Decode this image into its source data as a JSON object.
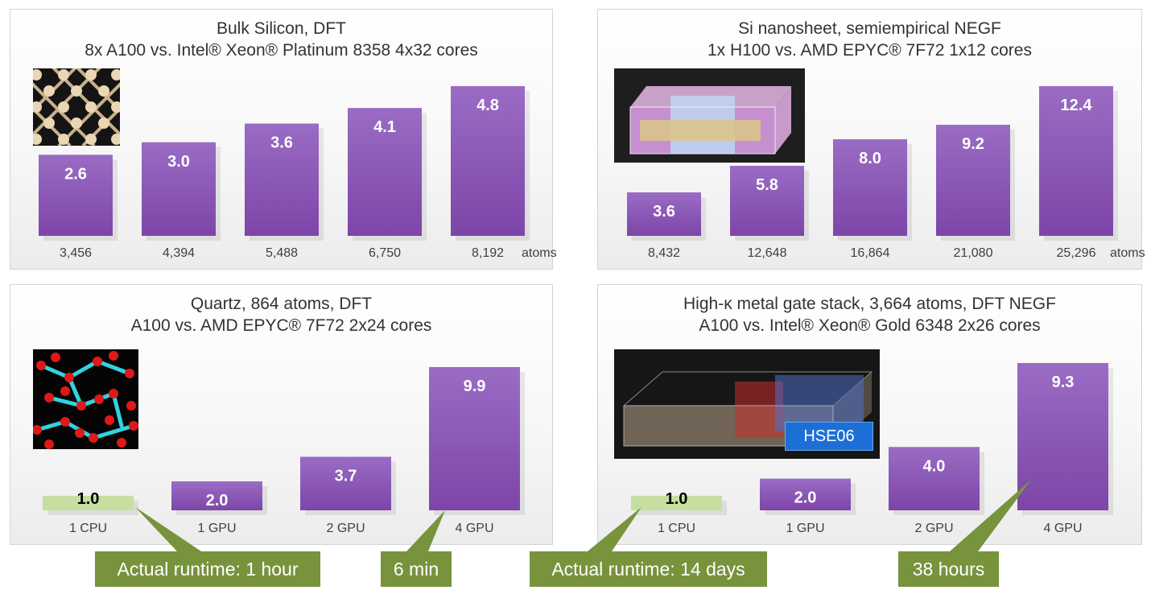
{
  "colors": {
    "bar": "#7d45a8",
    "bar_light": "#9a6cc4",
    "baseline": "#c5dfa1",
    "callout": "#77933c",
    "badge": "#1c6fd6"
  },
  "chart_data": [
    {
      "type": "bar",
      "title": [
        "Bulk Silicon, DFT",
        "8x A100 vs. Intel® Xeon® Platinum 8358 4x32 cores"
      ],
      "categories": [
        "3,456",
        "4,394",
        "5,488",
        "6,750",
        "8,192"
      ],
      "unit_label": "atoms",
      "values": [
        2.6,
        3.0,
        3.6,
        4.1,
        4.8
      ],
      "value_labels": [
        "2.6",
        "3.0",
        "3.6",
        "4.1",
        "4.8"
      ],
      "ylim": [
        0,
        4.8
      ],
      "inset": "bulk-silicon-structure"
    },
    {
      "type": "bar",
      "title": [
        "Si nanosheet, semiempirical NEGF",
        "1x H100 vs. AMD EPYC® 7F72 1x12 cores"
      ],
      "categories": [
        "8,432",
        "12,648",
        "16,864",
        "21,080",
        "25,296"
      ],
      "unit_label": "atoms",
      "values": [
        3.6,
        5.8,
        8.0,
        9.2,
        12.4
      ],
      "value_labels": [
        "3.6",
        "5.8",
        "8.0",
        "9.2",
        "12.4"
      ],
      "ylim": [
        0,
        12.4
      ],
      "inset": "si-nanosheet-device"
    },
    {
      "type": "bar",
      "title": [
        "Quartz, 864 atoms, DFT",
        "A100 vs. AMD EPYC® 7F72 2x24 cores"
      ],
      "categories": [
        "1 CPU",
        "1 GPU",
        "2 GPU",
        "4 GPU"
      ],
      "values": [
        1.0,
        2.0,
        3.7,
        9.9
      ],
      "value_labels": [
        "1.0",
        "2.0",
        "3.7",
        "9.9"
      ],
      "ylim": [
        0,
        9.9
      ],
      "inset": "quartz-structure"
    },
    {
      "type": "bar",
      "title": [
        "High-κ metal gate stack, 3,664 atoms, DFT NEGF",
        "A100 vs. Intel® Xeon® Gold 6348 2x26 cores"
      ],
      "categories": [
        "1 CPU",
        "1 GPU",
        "2 GPU",
        "4 GPU"
      ],
      "values": [
        1.0,
        2.0,
        4.0,
        9.3
      ],
      "value_labels": [
        "1.0",
        "2.0",
        "4.0",
        "9.3"
      ],
      "ylim": [
        0,
        9.3
      ],
      "inset": "gate-stack-structure",
      "inset_badge": "HSE06"
    }
  ],
  "callouts": [
    {
      "label": "Actual runtime: 1 hour"
    },
    {
      "label": "6 min"
    },
    {
      "label": "Actual runtime: 14 days"
    },
    {
      "label": "38 hours"
    }
  ]
}
